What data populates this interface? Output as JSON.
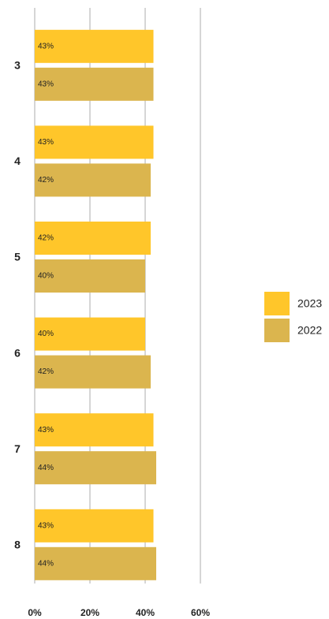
{
  "chart_data": {
    "type": "bar",
    "orientation": "horizontal",
    "categories": [
      "3",
      "4",
      "5",
      "6",
      "7",
      "8"
    ],
    "series": [
      {
        "name": "2023",
        "color": "#ffc62a",
        "values": [
          43,
          43,
          42,
          40,
          43,
          43
        ],
        "value_labels": [
          "43%",
          "43%",
          "42%",
          "40%",
          "43%",
          "43%"
        ]
      },
      {
        "name": "2022",
        "color": "#dbb54e",
        "values": [
          43,
          42,
          40,
          42,
          44,
          44
        ],
        "value_labels": [
          "43%",
          "42%",
          "40%",
          "42%",
          "44%",
          "44%"
        ]
      }
    ],
    "xlim": [
      0,
      60
    ],
    "xticks": [
      {
        "value": 0,
        "label": "0%"
      },
      {
        "value": 20,
        "label": "20%"
      },
      {
        "value": 40,
        "label": "40%"
      },
      {
        "value": 60,
        "label": "60%"
      }
    ],
    "grid": true,
    "legend": "right"
  }
}
